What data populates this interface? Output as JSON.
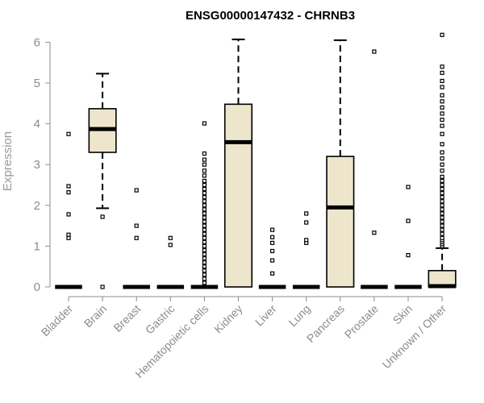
{
  "chart_data": {
    "type": "boxplot",
    "title": "ENSG00000147432 - CHRNB3",
    "ylabel": "Expression",
    "xlabel": "",
    "ylim": [
      0,
      6.2
    ],
    "yticks": [
      0,
      1,
      2,
      3,
      4,
      5,
      6
    ],
    "grid": false,
    "legend": "none",
    "colors": {
      "box_fill": "#ede6cc",
      "stroke": "#000000",
      "axis": "#8c8c8c"
    },
    "categories": [
      "Bladder",
      "Brain",
      "Breast",
      "Gastric",
      "Hematopoietic cells",
      "Kidney",
      "Liver",
      "Lung",
      "Pancreas",
      "Prostate",
      "Skin",
      "Unknown / Other"
    ],
    "boxes": [
      {
        "category": "Bladder",
        "q1": 0,
        "median": 0,
        "q3": 0,
        "whisker_low": 0,
        "whisker_high": 0,
        "outliers": [
          1.2,
          1.28,
          1.78,
          2.32,
          2.47,
          3.75
        ]
      },
      {
        "category": "Brain",
        "q1": 3.3,
        "median": 3.87,
        "q3": 4.37,
        "whisker_low": 1.93,
        "whisker_high": 5.23,
        "outliers": [
          0.0,
          1.72
        ]
      },
      {
        "category": "Breast",
        "q1": 0,
        "median": 0,
        "q3": 0,
        "whisker_low": 0,
        "whisker_high": 0,
        "outliers": [
          1.2,
          1.5,
          2.37
        ]
      },
      {
        "category": "Gastric",
        "q1": 0,
        "median": 0,
        "q3": 0,
        "whisker_low": 0,
        "whisker_high": 0,
        "outliers": [
          1.03,
          1.2
        ]
      },
      {
        "category": "Hematopoietic cells",
        "q1": 0,
        "median": 0,
        "q3": 0,
        "whisker_low": 0,
        "whisker_high": 0,
        "outliers": [
          0.1,
          0.2,
          0.3,
          0.4,
          0.5,
          0.6,
          0.7,
          0.8,
          0.9,
          1.0,
          1.1,
          1.2,
          1.3,
          1.4,
          1.5,
          1.6,
          1.7,
          1.8,
          1.9,
          2.0,
          2.1,
          2.2,
          2.3,
          2.4,
          2.5,
          2.6,
          2.73,
          2.85,
          3.0,
          3.12,
          3.27,
          4.01
        ]
      },
      {
        "category": "Kidney",
        "q1": 0,
        "median": 3.55,
        "q3": 4.48,
        "whisker_low": 0,
        "whisker_high": 6.07,
        "outliers": []
      },
      {
        "category": "Liver",
        "q1": 0,
        "median": 0,
        "q3": 0,
        "whisker_low": 0,
        "whisker_high": 0,
        "outliers": [
          0.33,
          0.65,
          0.88,
          1.08,
          1.22,
          1.4
        ]
      },
      {
        "category": "Lung",
        "q1": 0,
        "median": 0,
        "q3": 0,
        "whisker_low": 0,
        "whisker_high": 0,
        "outliers": [
          1.08,
          1.15,
          1.58,
          1.8
        ]
      },
      {
        "category": "Pancreas",
        "q1": 0,
        "median": 1.95,
        "q3": 3.2,
        "whisker_low": 0,
        "whisker_high": 6.05,
        "outliers": []
      },
      {
        "category": "Prostate",
        "q1": 0,
        "median": 0,
        "q3": 0,
        "whisker_low": 0,
        "whisker_high": 0,
        "outliers": [
          1.33,
          5.77
        ]
      },
      {
        "category": "Skin",
        "q1": 0,
        "median": 0,
        "q3": 0,
        "whisker_low": 0,
        "whisker_high": 0,
        "outliers": [
          0.78,
          1.62,
          2.45
        ]
      },
      {
        "category": "Unknown / Other",
        "q1": 0,
        "median": 0.02,
        "q3": 0.4,
        "whisker_low": 0,
        "whisker_high": 0.95,
        "outliers": [
          1.0,
          1.05,
          1.1,
          1.15,
          1.2,
          1.3,
          1.4,
          1.5,
          1.6,
          1.7,
          1.8,
          1.9,
          2.0,
          2.1,
          2.2,
          2.3,
          2.4,
          2.5,
          2.6,
          2.7,
          2.85,
          3.0,
          3.15,
          3.3,
          3.5,
          3.75,
          3.95,
          4.1,
          4.25,
          4.4,
          4.55,
          4.7,
          4.9,
          5.05,
          5.25,
          5.4,
          6.18
        ]
      }
    ]
  }
}
